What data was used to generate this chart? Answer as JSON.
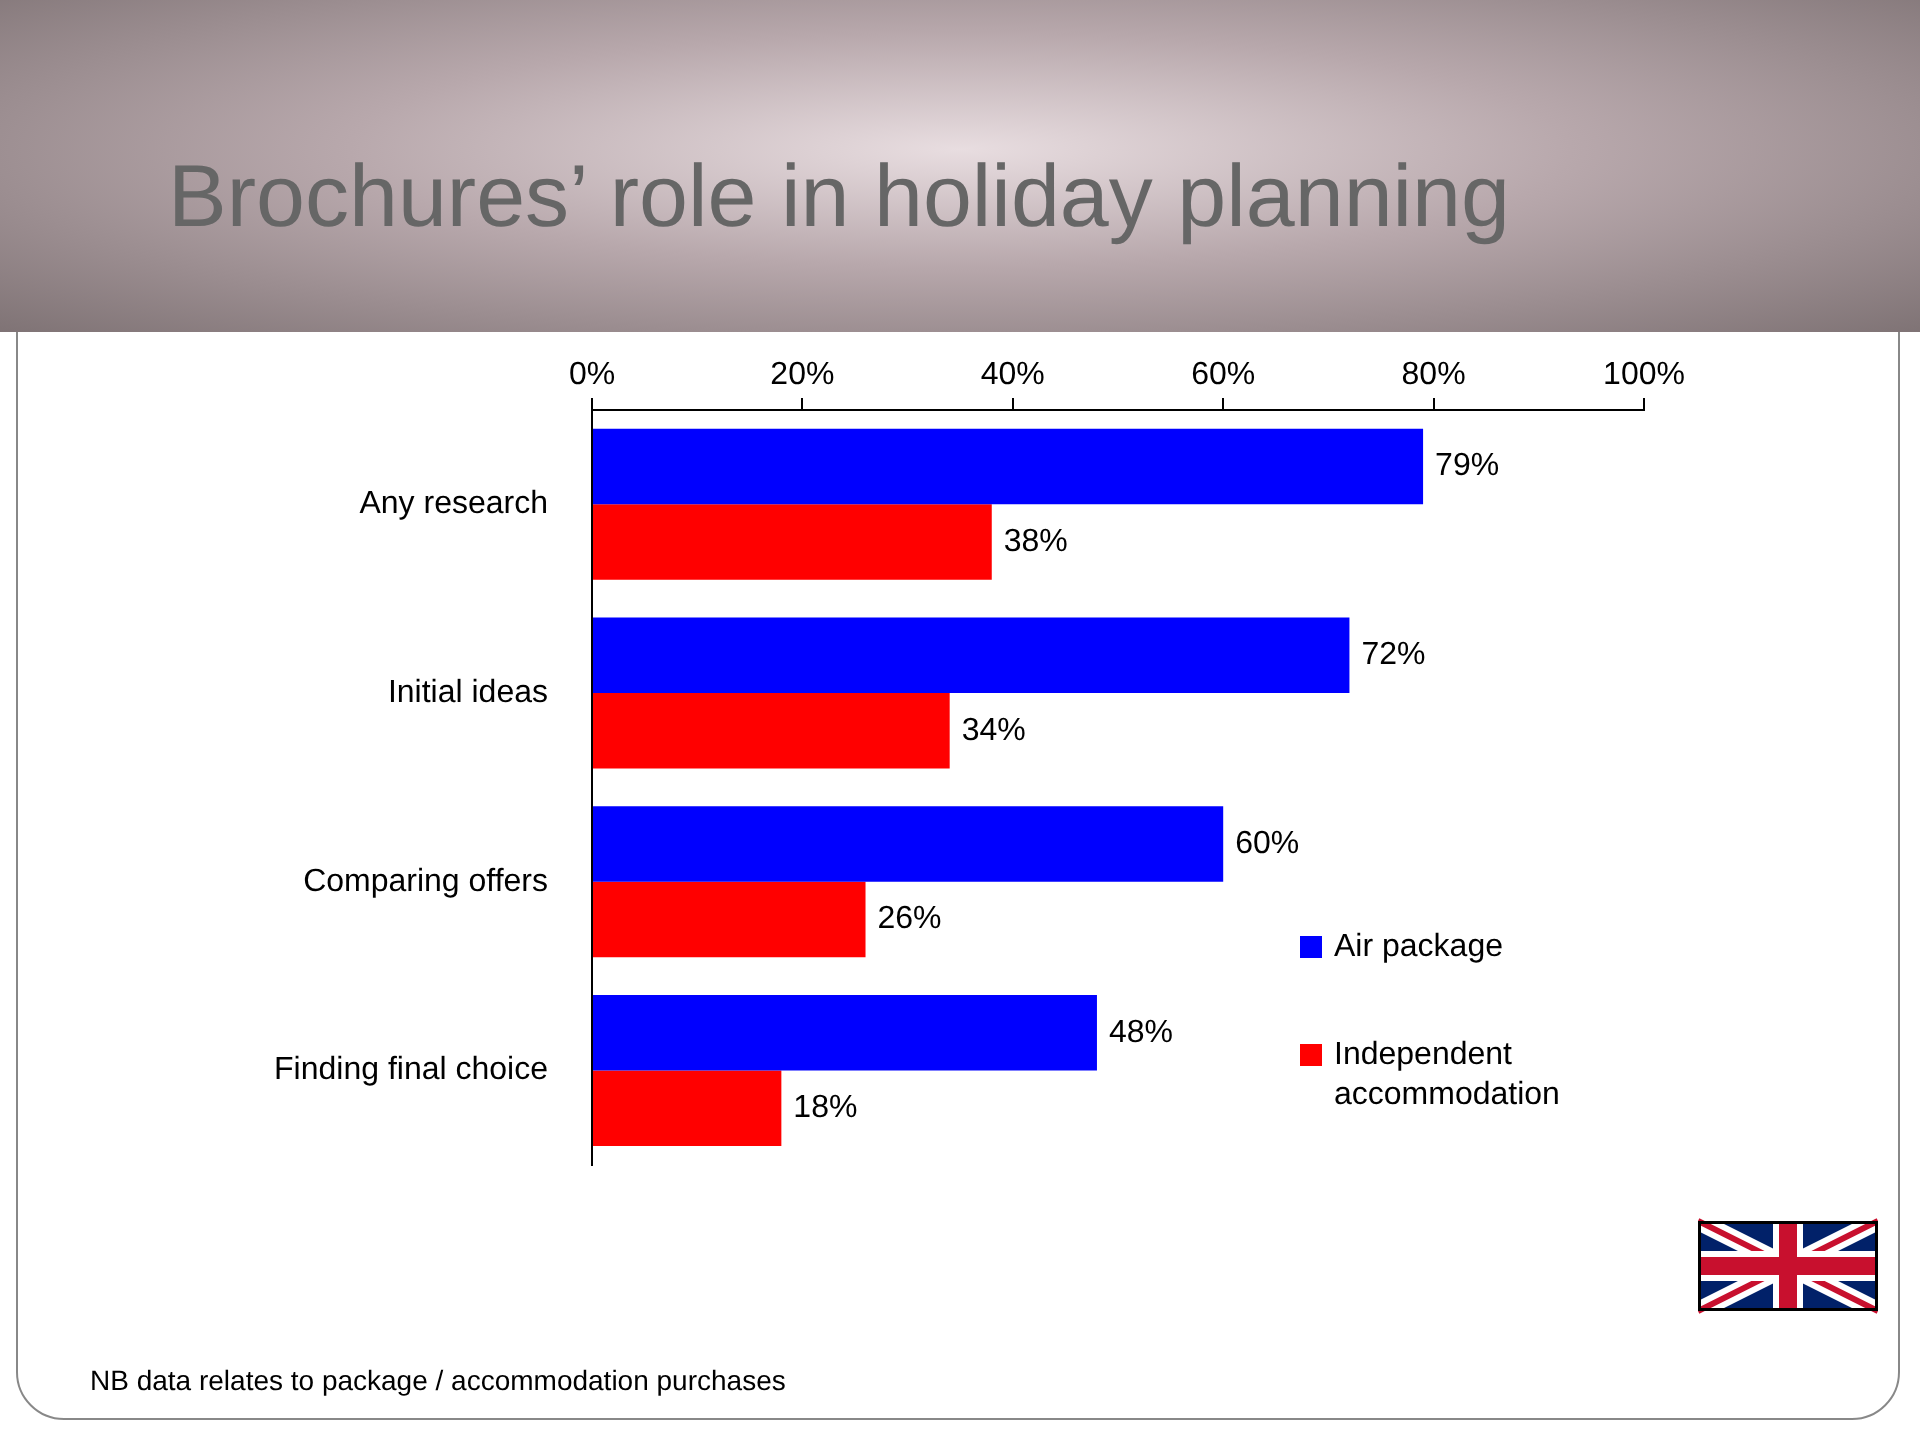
{
  "chart_data": {
    "type": "bar",
    "orientation": "horizontal",
    "title": "Brochures’ role in holiday planning",
    "categories": [
      "Any research",
      "Initial ideas",
      "Comparing offers",
      "Finding final choice"
    ],
    "series": [
      {
        "name": "Air package",
        "color": "#0000ff",
        "values": [
          79,
          72,
          60,
          48
        ],
        "value_labels": [
          "79%",
          "72%",
          "60%",
          "48%"
        ]
      },
      {
        "name": "Independent accommodation",
        "color": "#ff0000",
        "values": [
          38,
          34,
          26,
          18
        ],
        "value_labels": [
          "38%",
          "34%",
          "26%",
          "18%"
        ]
      }
    ],
    "xlim": [
      0,
      100
    ],
    "xticks": [
      {
        "value": 0,
        "label": "0%"
      },
      {
        "value": 20,
        "label": "20%"
      },
      {
        "value": 40,
        "label": "40%"
      },
      {
        "value": 60,
        "label": "60%"
      },
      {
        "value": 80,
        "label": "80%"
      },
      {
        "value": 100,
        "label": "100%"
      }
    ],
    "legend": "bottom right",
    "annotations": [
      "NB data relates to package / accommodation purchases"
    ]
  }
}
